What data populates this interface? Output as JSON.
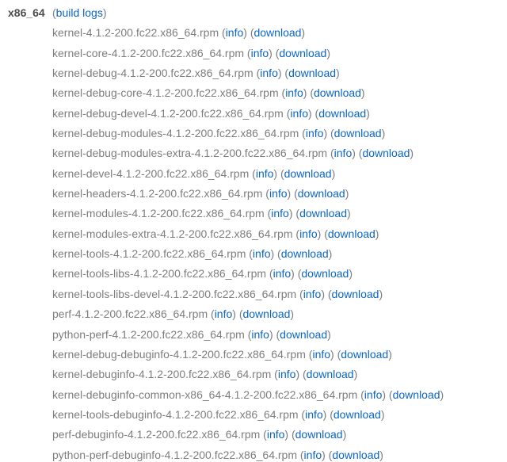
{
  "page": {
    "background": "#ffffff",
    "filename_color": "#7d7d7d",
    "arch_color": "#4d4d4d",
    "link_color": "#0a66c8"
  },
  "header": {
    "arch": "x86_64",
    "open_paren": "(",
    "build_logs_label": "build logs",
    "close_paren": ")"
  },
  "links": {
    "info_label": "info",
    "download_label": "download",
    "sep_open": " (",
    "sep_mid": ") (",
    "sep_close": ")"
  },
  "packages": [
    "kernel-4.1.2-200.fc22.x86_64.rpm",
    "kernel-core-4.1.2-200.fc22.x86_64.rpm",
    "kernel-debug-4.1.2-200.fc22.x86_64.rpm",
    "kernel-debug-core-4.1.2-200.fc22.x86_64.rpm",
    "kernel-debug-devel-4.1.2-200.fc22.x86_64.rpm",
    "kernel-debug-modules-4.1.2-200.fc22.x86_64.rpm",
    "kernel-debug-modules-extra-4.1.2-200.fc22.x86_64.rpm",
    "kernel-devel-4.1.2-200.fc22.x86_64.rpm",
    "kernel-headers-4.1.2-200.fc22.x86_64.rpm",
    "kernel-modules-4.1.2-200.fc22.x86_64.rpm",
    "kernel-modules-extra-4.1.2-200.fc22.x86_64.rpm",
    "kernel-tools-4.1.2-200.fc22.x86_64.rpm",
    "kernel-tools-libs-4.1.2-200.fc22.x86_64.rpm",
    "kernel-tools-libs-devel-4.1.2-200.fc22.x86_64.rpm",
    "perf-4.1.2-200.fc22.x86_64.rpm",
    "python-perf-4.1.2-200.fc22.x86_64.rpm",
    "kernel-debug-debuginfo-4.1.2-200.fc22.x86_64.rpm",
    "kernel-debuginfo-4.1.2-200.fc22.x86_64.rpm",
    "kernel-debuginfo-common-x86_64-4.1.2-200.fc22.x86_64.rpm",
    "kernel-tools-debuginfo-4.1.2-200.fc22.x86_64.rpm",
    "perf-debuginfo-4.1.2-200.fc22.x86_64.rpm",
    "python-perf-debuginfo-4.1.2-200.fc22.x86_64.rpm"
  ]
}
